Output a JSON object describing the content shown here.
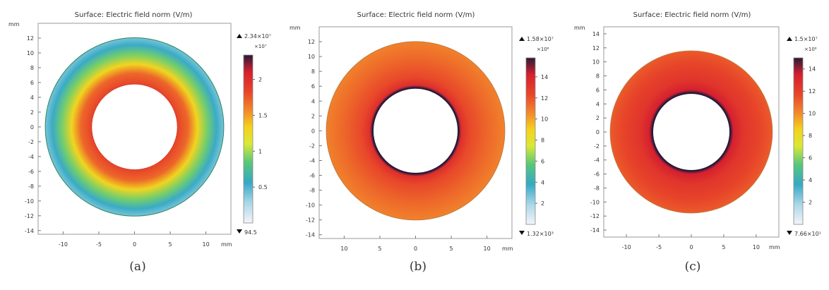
{
  "chart_data": [
    {
      "type": "heatmap",
      "title": "Surface: Electric field norm (V/m)",
      "xlabel": "mm",
      "ylabel": "mm",
      "caption": "(a)",
      "xticks": [
        "-10",
        "-5",
        "0",
        "5",
        "10"
      ],
      "yticks": [
        "12",
        "10",
        "8",
        "6",
        "4",
        "2",
        "0",
        "-2",
        "-4",
        "-6",
        "-8",
        "-10",
        "-12",
        "-14"
      ],
      "xlim": [
        -13.5,
        13.5
      ],
      "ylim": [
        -14.5,
        14
      ],
      "ring": {
        "inner_radius": 6,
        "outer_radius": 12.5
      },
      "colorbar": {
        "max_label": "2.34×10⁷",
        "min_label": "94.5",
        "multiplier": "×10⁷",
        "ticks": [
          "2",
          "1.5",
          "1",
          "0.5"
        ],
        "tick_values": [
          2,
          1.5,
          1,
          0.5
        ],
        "range": [
          0,
          2.34
        ]
      },
      "radial_profile": [
        {
          "r": 6,
          "value": 1.85
        },
        {
          "r": 7.5,
          "value": 1.7
        },
        {
          "r": 8.8,
          "value": 1.3
        },
        {
          "r": 10.2,
          "value": 0.9
        },
        {
          "r": 11.5,
          "value": 0.55
        },
        {
          "r": 12.5,
          "value": 0.4
        }
      ]
    },
    {
      "type": "heatmap",
      "title": "Surface: Electric field norm (V/m)",
      "xlabel": "mm",
      "ylabel": "mm",
      "caption": "(b)",
      "xticks": [
        "10",
        "5",
        "0",
        "5",
        "10"
      ],
      "yticks": [
        "12",
        "10",
        "8",
        "6",
        "4",
        "2",
        "0",
        "-2",
        "-4",
        "-6",
        "-8",
        "-10",
        "-12",
        "-14"
      ],
      "xlim": [
        -13.5,
        13.5
      ],
      "ylim": [
        -14.5,
        14
      ],
      "ring": {
        "inner_radius": 6,
        "outer_radius": 12.5
      },
      "colorbar": {
        "max_label": "1.58×10⁷",
        "min_label": "1.32×10³",
        "multiplier": "×10⁶",
        "ticks": [
          "14",
          "12",
          "10",
          "8",
          "6",
          "4",
          "2"
        ],
        "tick_values": [
          14,
          12,
          10,
          8,
          6,
          4,
          2
        ],
        "range": [
          0,
          15.8
        ]
      },
      "radial_profile": [
        {
          "r": 6,
          "value": 15.8
        },
        {
          "r": 6.4,
          "value": 13.5
        },
        {
          "r": 7.5,
          "value": 12.3
        },
        {
          "r": 10,
          "value": 11.5
        },
        {
          "r": 12.5,
          "value": 10.8
        }
      ]
    },
    {
      "type": "heatmap",
      "title": "Surface: Electric field norm (V/m)",
      "xlabel": "mm",
      "ylabel": "mm",
      "caption": "(c)",
      "xticks": [
        "-10",
        "-5",
        "0",
        "5",
        "10"
      ],
      "yticks": [
        "14",
        "12",
        "10",
        "8",
        "6",
        "4",
        "2",
        "0",
        "-2",
        "-4",
        "-6",
        "-8",
        "-10",
        "-12",
        "-14"
      ],
      "xlim": [
        -13.5,
        13.5
      ],
      "ylim": [
        -15,
        15
      ],
      "ring": {
        "inner_radius": 6,
        "outer_radius": 12.5
      },
      "colorbar": {
        "max_label": "1.5×10⁷",
        "min_label": "7.66×10¹",
        "multiplier": "×10⁶",
        "ticks": [
          "14",
          "12",
          "10",
          "8",
          "6",
          "4",
          "2"
        ],
        "tick_values": [
          14,
          12,
          10,
          8,
          6,
          4,
          2
        ],
        "range": [
          0,
          15
        ]
      },
      "radial_profile": [
        {
          "r": 6,
          "value": 15
        },
        {
          "r": 6.5,
          "value": 13.5
        },
        {
          "r": 8,
          "value": 12.5
        },
        {
          "r": 10.5,
          "value": 11.8
        },
        {
          "r": 12.5,
          "value": 11.2
        }
      ]
    }
  ]
}
